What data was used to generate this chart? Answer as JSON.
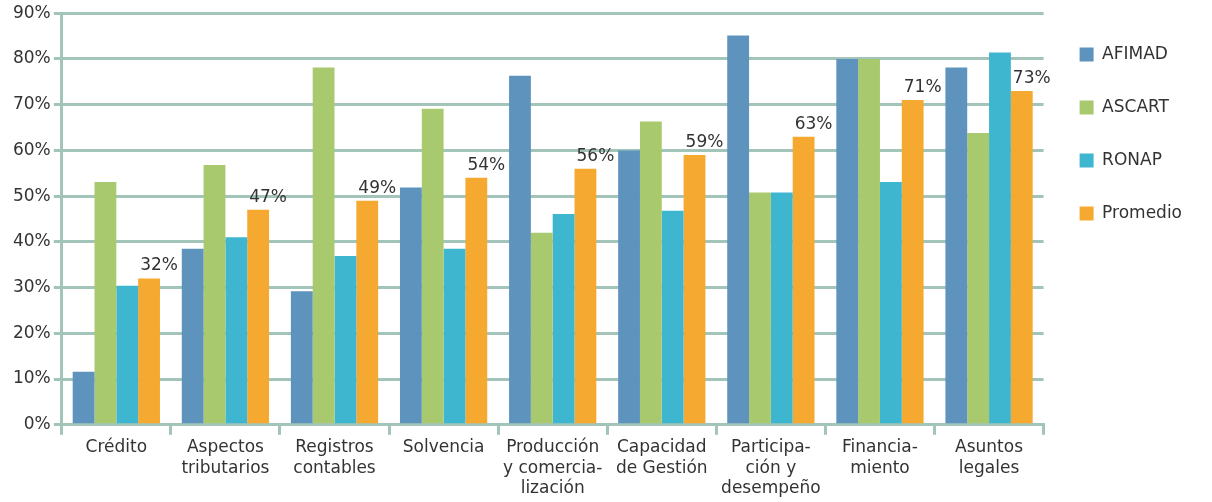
{
  "chart_data": {
    "type": "bar",
    "categories": [
      "Crédito",
      "Aspectos\ntributarios",
      "Registros\ncontables",
      "Solvencia",
      "Producción\ny comercia-\nlización",
      "Capacidad\nde Gestión",
      "Participa-\nción y\ndesempeño",
      "Financia-\nmiento",
      "Asuntos\nlegales"
    ],
    "series": [
      {
        "name": "AFIMAD",
        "color": "#5e93bd",
        "values": [
          11.6,
          38.5,
          29.2,
          51.9,
          76.3,
          60.0,
          85.1,
          80.0,
          78.1
        ]
      },
      {
        "name": "ASCART",
        "color": "#a9c96f",
        "values": [
          53.1,
          56.8,
          78.1,
          69.1,
          42.0,
          66.3,
          50.8,
          80.0,
          63.8
        ]
      },
      {
        "name": "RONAP",
        "color": "#3fb6cf",
        "values": [
          30.4,
          41.0,
          36.9,
          38.5,
          46.1,
          46.8,
          50.8,
          53.1,
          81.4
        ]
      },
      {
        "name": "Promedio",
        "color": "#f5a930",
        "values": [
          32,
          47,
          49,
          54,
          56,
          59,
          63,
          71,
          73
        ],
        "value_labels": [
          "32%",
          "47%",
          "49%",
          "54%",
          "56%",
          "59%",
          "63%",
          "71%",
          "73%"
        ]
      }
    ],
    "ylim": [
      0,
      90
    ],
    "yticks": [
      {
        "value": 0,
        "label": "0%"
      },
      {
        "value": 10,
        "label": "10%"
      },
      {
        "value": 20,
        "label": "20%"
      },
      {
        "value": 30,
        "label": "30%"
      },
      {
        "value": 40,
        "label": "40%"
      },
      {
        "value": 50,
        "label": "50%"
      },
      {
        "value": 60,
        "label": "60%"
      },
      {
        "value": 70,
        "label": "70%"
      },
      {
        "value": 80,
        "label": "80%"
      },
      {
        "value": 90,
        "label": "90%"
      }
    ],
    "grid": "y",
    "legend": "right"
  }
}
